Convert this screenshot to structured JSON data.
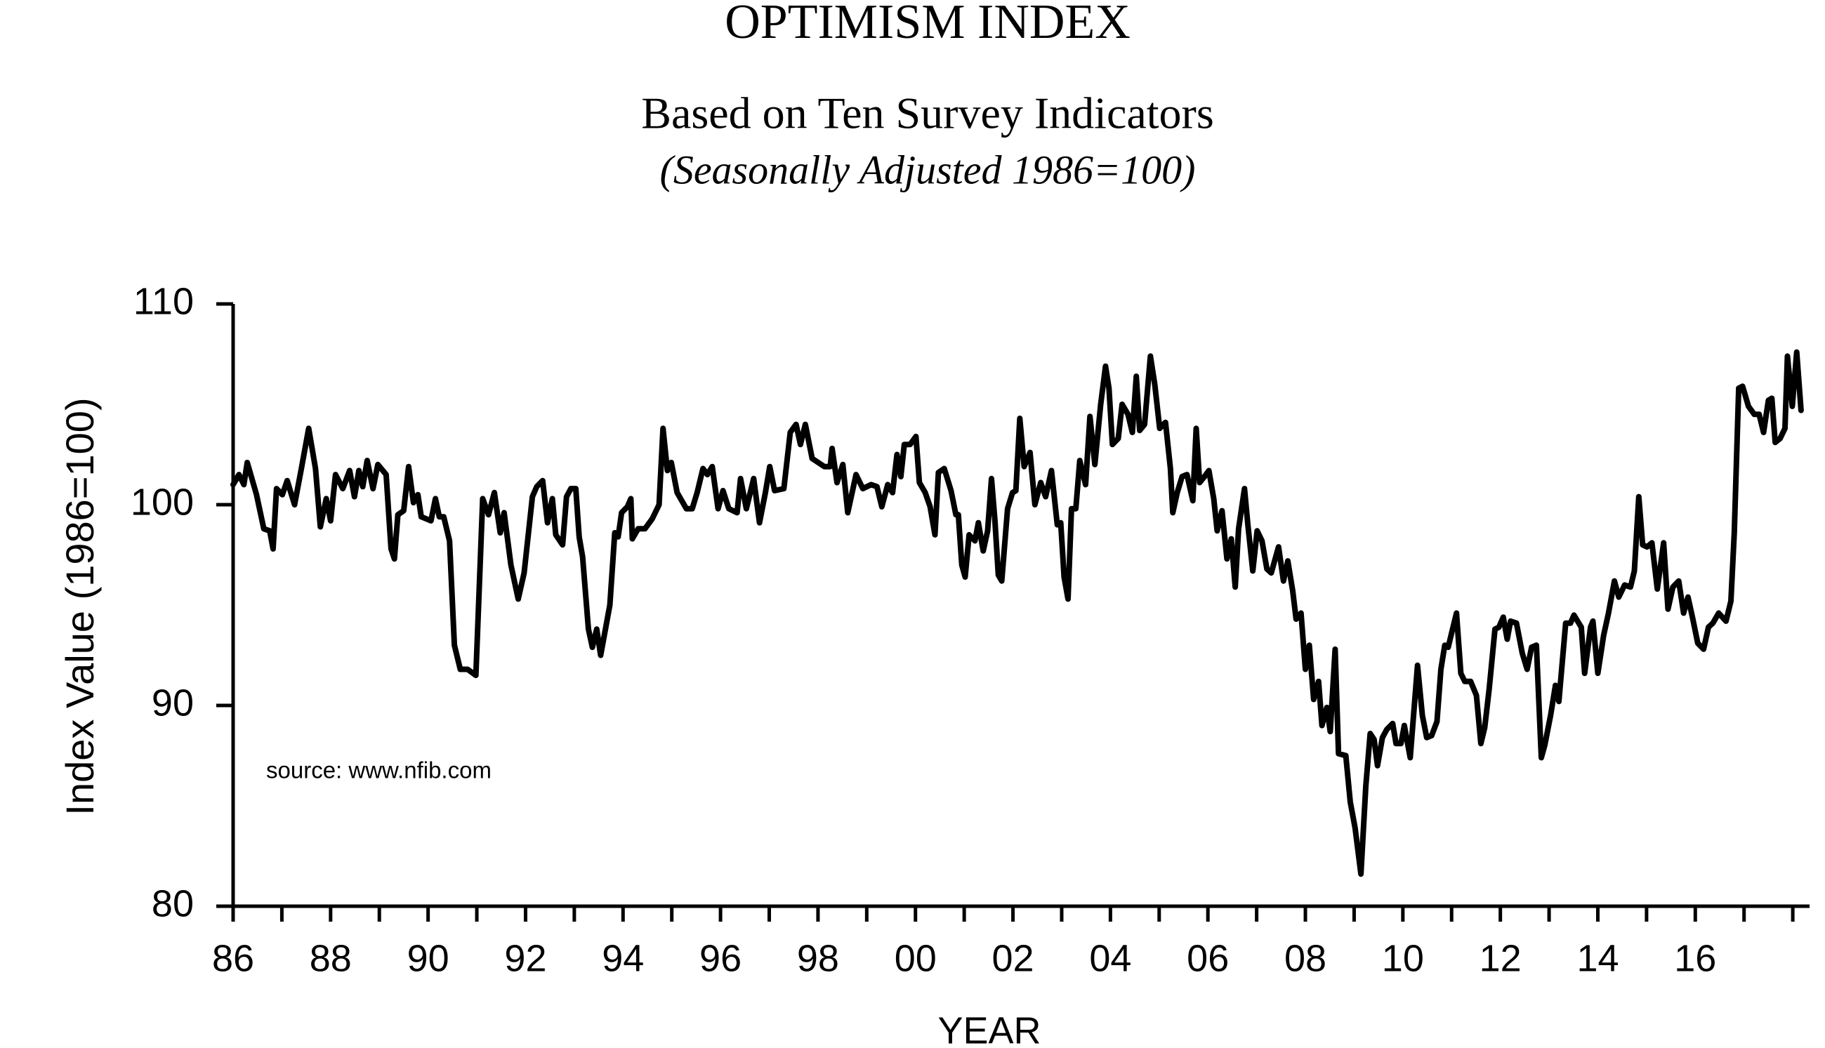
{
  "chart_data": {
    "type": "line",
    "title": "OPTIMISM INDEX",
    "subtitle": "Based on Ten Survey Indicators",
    "subtitle2": "(Seasonally Adjusted 1986=100)",
    "y_label": "Index Value (1986=100)",
    "x_label": "YEAR",
    "annotation": "source: www.nfib.com",
    "color": "#000000",
    "xlim": [
      1986,
      2018.2
    ],
    "ylim": [
      80,
      110
    ],
    "yticks": [
      80,
      90,
      100,
      110
    ],
    "xticks": [
      {
        "value": 1986,
        "label": "86"
      },
      {
        "value": 1988,
        "label": "88"
      },
      {
        "value": 1990,
        "label": "90"
      },
      {
        "value": 1992,
        "label": "92"
      },
      {
        "value": 1994,
        "label": "94"
      },
      {
        "value": 1996,
        "label": "96"
      },
      {
        "value": 1998,
        "label": "98"
      },
      {
        "value": 2000,
        "label": "00"
      },
      {
        "value": 2002,
        "label": "02"
      },
      {
        "value": 2004,
        "label": "04"
      },
      {
        "value": 2006,
        "label": "06"
      },
      {
        "value": 2008,
        "label": "08"
      },
      {
        "value": 2010,
        "label": "10"
      },
      {
        "value": 2012,
        "label": "12"
      },
      {
        "value": 2014,
        "label": "14"
      },
      {
        "value": 2016,
        "label": "16"
      }
    ],
    "xminorticks": [
      1987,
      1989,
      1991,
      1993,
      1995,
      1997,
      1999,
      2001,
      2003,
      2005,
      2007,
      2009,
      2011,
      2013,
      2015,
      2017,
      2018
    ],
    "x": [
      1986.0,
      1986.12,
      1986.22,
      1986.29,
      1986.48,
      1986.63,
      1986.75,
      1986.82,
      1986.89,
      1987.01,
      1987.11,
      1987.26,
      1987.4,
      1987.55,
      1987.69,
      1987.79,
      1987.91,
      1988.0,
      1988.1,
      1988.25,
      1988.39,
      1988.49,
      1988.58,
      1988.66,
      1988.75,
      1988.87,
      1988.97,
      1989.14,
      1989.24,
      1989.31,
      1989.38,
      1989.5,
      1989.6,
      1989.7,
      1989.79,
      1989.86,
      1990.06,
      1990.15,
      1990.23,
      1990.32,
      1990.44,
      1990.54,
      1990.66,
      1990.81,
      1990.98,
      1991.12,
      1991.24,
      1991.36,
      1991.48,
      1991.56,
      1991.7,
      1991.85,
      1991.97,
      1992.14,
      1992.23,
      1992.35,
      1992.45,
      1992.55,
      1992.62,
      1992.76,
      1992.84,
      1992.93,
      1993.03,
      1993.1,
      1993.17,
      1993.29,
      1993.37,
      1993.46,
      1993.54,
      1993.73,
      1993.83,
      1993.9,
      1993.97,
      1994.09,
      1994.16,
      1994.19,
      1994.31,
      1994.45,
      1994.6,
      1994.74,
      1994.82,
      1994.91,
      1994.99,
      1995.11,
      1995.3,
      1995.42,
      1995.52,
      1995.64,
      1995.73,
      1995.83,
      1995.95,
      1996.05,
      1996.17,
      1996.34,
      1996.41,
      1996.53,
      1996.68,
      1996.8,
      1996.92,
      1997.01,
      1997.11,
      1997.3,
      1997.43,
      1997.55,
      1997.64,
      1997.74,
      1997.88,
      1998.13,
      1998.25,
      1998.29,
      1998.39,
      1998.51,
      1998.61,
      1998.78,
      1998.92,
      1999.09,
      1999.21,
      1999.31,
      1999.43,
      1999.53,
      1999.62,
      1999.7,
      1999.77,
      1999.89,
      2000.01,
      2000.08,
      2000.2,
      2000.3,
      2000.4,
      2000.47,
      2000.59,
      2000.73,
      2000.83,
      2000.88,
      2000.95,
      2001.02,
      2001.1,
      2001.22,
      2001.29,
      2001.39,
      2001.48,
      2001.56,
      2001.63,
      2001.7,
      2001.77,
      2001.89,
      2001.99,
      2002.06,
      2002.14,
      2002.23,
      2002.35,
      2002.45,
      2002.57,
      2002.67,
      2002.79,
      2002.91,
      2002.98,
      2003.05,
      2003.13,
      2003.2,
      2003.29,
      2003.37,
      2003.49,
      2003.58,
      2003.68,
      2003.8,
      2003.9,
      2003.97,
      2004.04,
      2004.16,
      2004.24,
      2004.36,
      2004.45,
      2004.53,
      2004.6,
      2004.7,
      2004.82,
      2004.91,
      2005.01,
      2005.13,
      2005.23,
      2005.28,
      2005.37,
      2005.47,
      2005.57,
      2005.69,
      2005.76,
      2005.83,
      2005.93,
      2006.02,
      2006.12,
      2006.19,
      2006.29,
      2006.39,
      2006.48,
      2006.56,
      2006.63,
      2006.75,
      2006.82,
      2006.92,
      2007.01,
      2007.11,
      2007.21,
      2007.3,
      2007.45,
      2007.55,
      2007.64,
      2007.74,
      2007.81,
      2007.91,
      2008.0,
      2008.08,
      2008.17,
      2008.27,
      2008.34,
      2008.44,
      2008.51,
      2008.61,
      2008.68,
      2008.83,
      2008.92,
      2009.02,
      2009.14,
      2009.24,
      2009.33,
      2009.41,
      2009.48,
      2009.58,
      2009.67,
      2009.79,
      2009.86,
      2009.96,
      2010.03,
      2010.15,
      2010.3,
      2010.4,
      2010.49,
      2010.59,
      2010.7,
      2010.78,
      2010.86,
      2010.93,
      2011.02,
      2011.1,
      2011.19,
      2011.27,
      2011.39,
      2011.51,
      2011.6,
      2011.68,
      2011.77,
      2011.89,
      2011.97,
      2012.06,
      2012.14,
      2012.21,
      2012.33,
      2012.45,
      2012.55,
      2012.64,
      2012.74,
      2012.84,
      2012.91,
      2013.03,
      2013.13,
      2013.2,
      2013.34,
      2013.44,
      2013.51,
      2013.66,
      2013.73,
      2013.85,
      2013.9,
      2014.0,
      2014.12,
      2014.22,
      2014.34,
      2014.43,
      2014.55,
      2014.67,
      2014.75,
      2014.84,
      2014.92,
      2015.01,
      2015.11,
      2015.22,
      2015.35,
      2015.44,
      2015.54,
      2015.66,
      2015.76,
      2015.85,
      2015.95,
      2016.05,
      2016.17,
      2016.27,
      2016.36,
      2016.48,
      2016.63,
      2016.73,
      2016.8,
      2016.89,
      2016.97,
      2017.09,
      2017.21,
      2017.31,
      2017.4,
      2017.5,
      2017.57,
      2017.64,
      2017.74,
      2017.84,
      2017.89,
      2017.99,
      2018.08,
      2018.17
    ],
    "values": [
      101.0,
      101.5,
      101.0,
      102.1,
      100.5,
      98.8,
      98.7,
      97.8,
      100.8,
      100.5,
      101.2,
      100.0,
      101.8,
      103.8,
      101.8,
      98.9,
      100.3,
      99.2,
      101.5,
      100.8,
      101.7,
      100.4,
      101.7,
      100.9,
      102.2,
      100.8,
      102.0,
      101.5,
      97.8,
      97.3,
      99.5,
      99.7,
      101.9,
      100.1,
      100.5,
      99.4,
      99.2,
      100.3,
      99.4,
      99.4,
      98.2,
      93.0,
      91.8,
      91.8,
      91.5,
      100.3,
      99.5,
      100.6,
      98.6,
      99.6,
      97.0,
      95.3,
      96.6,
      100.4,
      100.9,
      101.2,
      99.1,
      100.3,
      98.5,
      98.0,
      100.4,
      100.8,
      100.8,
      98.4,
      97.4,
      93.8,
      92.9,
      93.8,
      92.5,
      95.0,
      98.6,
      98.4,
      99.6,
      99.9,
      100.3,
      98.3,
      98.8,
      98.8,
      99.3,
      100.0,
      103.8,
      101.7,
      102.1,
      100.6,
      99.8,
      99.8,
      100.6,
      101.8,
      101.5,
      101.9,
      99.8,
      100.7,
      99.8,
      99.6,
      101.3,
      99.8,
      101.3,
      99.1,
      100.6,
      101.9,
      100.7,
      100.8,
      103.6,
      104.0,
      103.0,
      104.0,
      102.3,
      101.9,
      101.9,
      102.8,
      101.1,
      102.0,
      99.6,
      101.5,
      100.8,
      101.0,
      100.9,
      99.9,
      101.0,
      100.6,
      102.5,
      101.4,
      103.0,
      103.0,
      103.4,
      101.1,
      100.6,
      99.9,
      98.5,
      101.6,
      101.8,
      100.7,
      99.5,
      99.5,
      97.0,
      96.4,
      98.5,
      98.2,
      99.1,
      97.7,
      98.7,
      101.3,
      99.2,
      96.5,
      96.2,
      99.8,
      100.6,
      100.7,
      104.3,
      101.9,
      102.6,
      100.0,
      101.1,
      100.4,
      101.7,
      99.0,
      99.1,
      96.4,
      95.3,
      99.8,
      99.8,
      102.2,
      101.0,
      104.4,
      102.0,
      105.0,
      106.9,
      105.8,
      103.0,
      103.3,
      105.0,
      104.5,
      103.6,
      106.4,
      103.7,
      104.0,
      107.4,
      106.0,
      103.8,
      104.1,
      101.8,
      99.6,
      100.6,
      101.4,
      101.5,
      100.2,
      103.8,
      101.1,
      101.4,
      101.7,
      100.3,
      98.7,
      99.7,
      97.3,
      98.3,
      95.9,
      98.8,
      100.8,
      99.0,
      96.7,
      98.7,
      98.2,
      96.8,
      96.6,
      97.9,
      96.2,
      97.2,
      95.7,
      94.3,
      94.6,
      91.8,
      93.0,
      90.3,
      91.2,
      89.0,
      89.9,
      88.7,
      92.8,
      87.6,
      87.5,
      85.2,
      83.9,
      81.6,
      86.0,
      88.6,
      88.3,
      87.0,
      88.4,
      88.8,
      89.1,
      88.1,
      88.1,
      89.0,
      87.4,
      92.0,
      89.5,
      88.4,
      88.5,
      89.2,
      91.8,
      93.0,
      92.9,
      93.8,
      94.6,
      91.6,
      91.2,
      91.2,
      90.5,
      88.1,
      88.9,
      90.8,
      93.8,
      93.9,
      94.4,
      93.3,
      94.2,
      94.1,
      92.6,
      91.8,
      92.9,
      93.0,
      87.4,
      88.0,
      89.5,
      91.0,
      90.2,
      94.1,
      94.1,
      94.5,
      93.9,
      91.6,
      93.9,
      94.2,
      91.6,
      93.5,
      94.6,
      96.2,
      95.4,
      96.0,
      95.9,
      96.7,
      100.4,
      98.0,
      97.9,
      98.1,
      95.8,
      98.1,
      94.8,
      95.9,
      96.2,
      94.6,
      95.4,
      94.3,
      93.1,
      92.8,
      93.9,
      94.1,
      94.6,
      94.2,
      95.2,
      98.6,
      105.8,
      105.9,
      104.9,
      104.5,
      104.5,
      103.6,
      105.2,
      105.3,
      103.1,
      103.3,
      103.8,
      107.4,
      104.9,
      107.6,
      104.7
    ]
  }
}
